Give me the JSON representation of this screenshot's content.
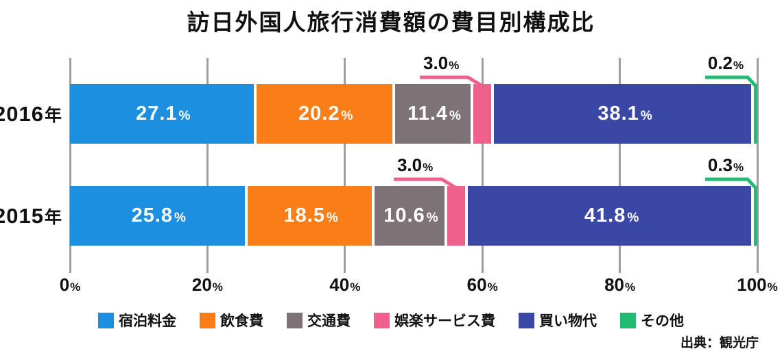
{
  "title": "訪日外国人旅行消費額の費目別構成比",
  "source": "出典：観光庁",
  "chart_data": {
    "type": "bar",
    "variant": "horizontal-stacked",
    "title": "訪日外国人旅行消費額の費目別構成比",
    "unit": "%",
    "categories": [
      "2016年",
      "2015年"
    ],
    "segments": [
      {
        "label": "宿泊料金",
        "color": "#1D8FE1"
      },
      {
        "label": "飲食費",
        "color": "#FA7D17"
      },
      {
        "label": "交通費",
        "color": "#7D7377"
      },
      {
        "label": "娯楽サービス費",
        "color": "#F0608C"
      },
      {
        "label": "買い物代",
        "color": "#3A47A4"
      },
      {
        "label": "その他",
        "color": "#22BB73"
      }
    ],
    "series": [
      {
        "name": "2016年",
        "values": [
          27.1,
          20.2,
          11.4,
          3.0,
          38.1,
          0.2
        ]
      },
      {
        "name": "2015年",
        "values": [
          25.8,
          18.5,
          10.6,
          3.0,
          41.8,
          0.3
        ]
      }
    ],
    "x_ticks": [
      0,
      20,
      40,
      60,
      80,
      100
    ],
    "xlim": [
      0,
      100
    ],
    "grid": true,
    "legend_position": "bottom",
    "grid_color": "#9e9e9e"
  }
}
